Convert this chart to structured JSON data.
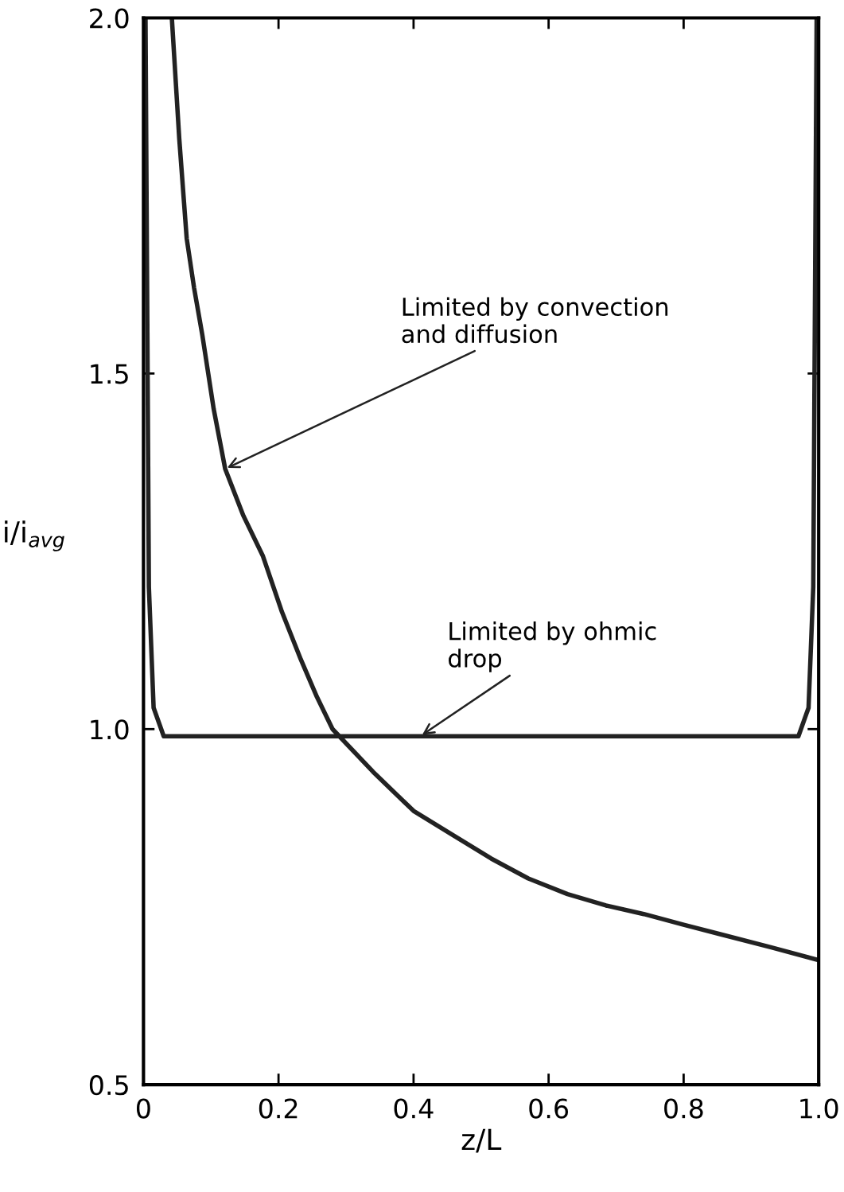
{
  "chart_data": {
    "type": "line",
    "xlabel": "z/L",
    "ylabel": "i/i$_{avg}$",
    "xlim": [
      0,
      1.0
    ],
    "ylim": [
      0.5,
      2.0
    ],
    "xticks": [
      {
        "value": 0,
        "label": "0"
      },
      {
        "value": 0.2,
        "label": "0.2"
      },
      {
        "value": 0.4,
        "label": "0.4"
      },
      {
        "value": 0.6,
        "label": "0.6"
      },
      {
        "value": 0.8,
        "label": "0.8"
      },
      {
        "value": 1.0,
        "label": "1.0"
      }
    ],
    "yticks": [
      {
        "value": 0.5,
        "label": "0.5"
      },
      {
        "value": 1.0,
        "label": "1.0"
      },
      {
        "value": 1.5,
        "label": "1.5"
      },
      {
        "value": 2.0,
        "label": "2.0"
      }
    ],
    "grid": false,
    "legend": false,
    "marker": "none",
    "line_style": "solid",
    "series": [
      {
        "color": "#222222",
        "x": [
          0.042,
          0.053,
          0.064,
          0.075,
          0.087,
          0.104,
          0.121,
          0.148,
          0.177,
          0.205,
          0.233,
          0.257,
          0.28,
          0.34,
          0.4,
          0.46,
          0.515,
          0.57,
          0.628,
          0.685,
          0.741,
          0.8,
          0.853,
          0.93,
          1.0
        ],
        "values": [
          2.0,
          1.83,
          1.69,
          1.62,
          1.555,
          1.45,
          1.366,
          1.3,
          1.243,
          1.165,
          1.098,
          1.045,
          1.0,
          0.94,
          0.885,
          0.85,
          0.818,
          0.79,
          0.768,
          0.752,
          0.74,
          0.725,
          0.712,
          0.693,
          0.675
        ]
      },
      {
        "color": "#222222",
        "x": [
          0.003,
          0.008,
          0.015,
          0.03,
          0.97,
          0.985,
          0.992,
          0.997
        ],
        "values": [
          2.0,
          1.2,
          1.03,
          0.99,
          0.99,
          1.03,
          1.2,
          2.0
        ]
      }
    ],
    "annotations": [
      {
        "text": "Limited by convection\nand diffusion",
        "x": 0.121,
        "y": 1.366
      },
      {
        "text": "Limited by ohmic\ndrop",
        "x": 0.41,
        "y": 0.99
      }
    ]
  }
}
